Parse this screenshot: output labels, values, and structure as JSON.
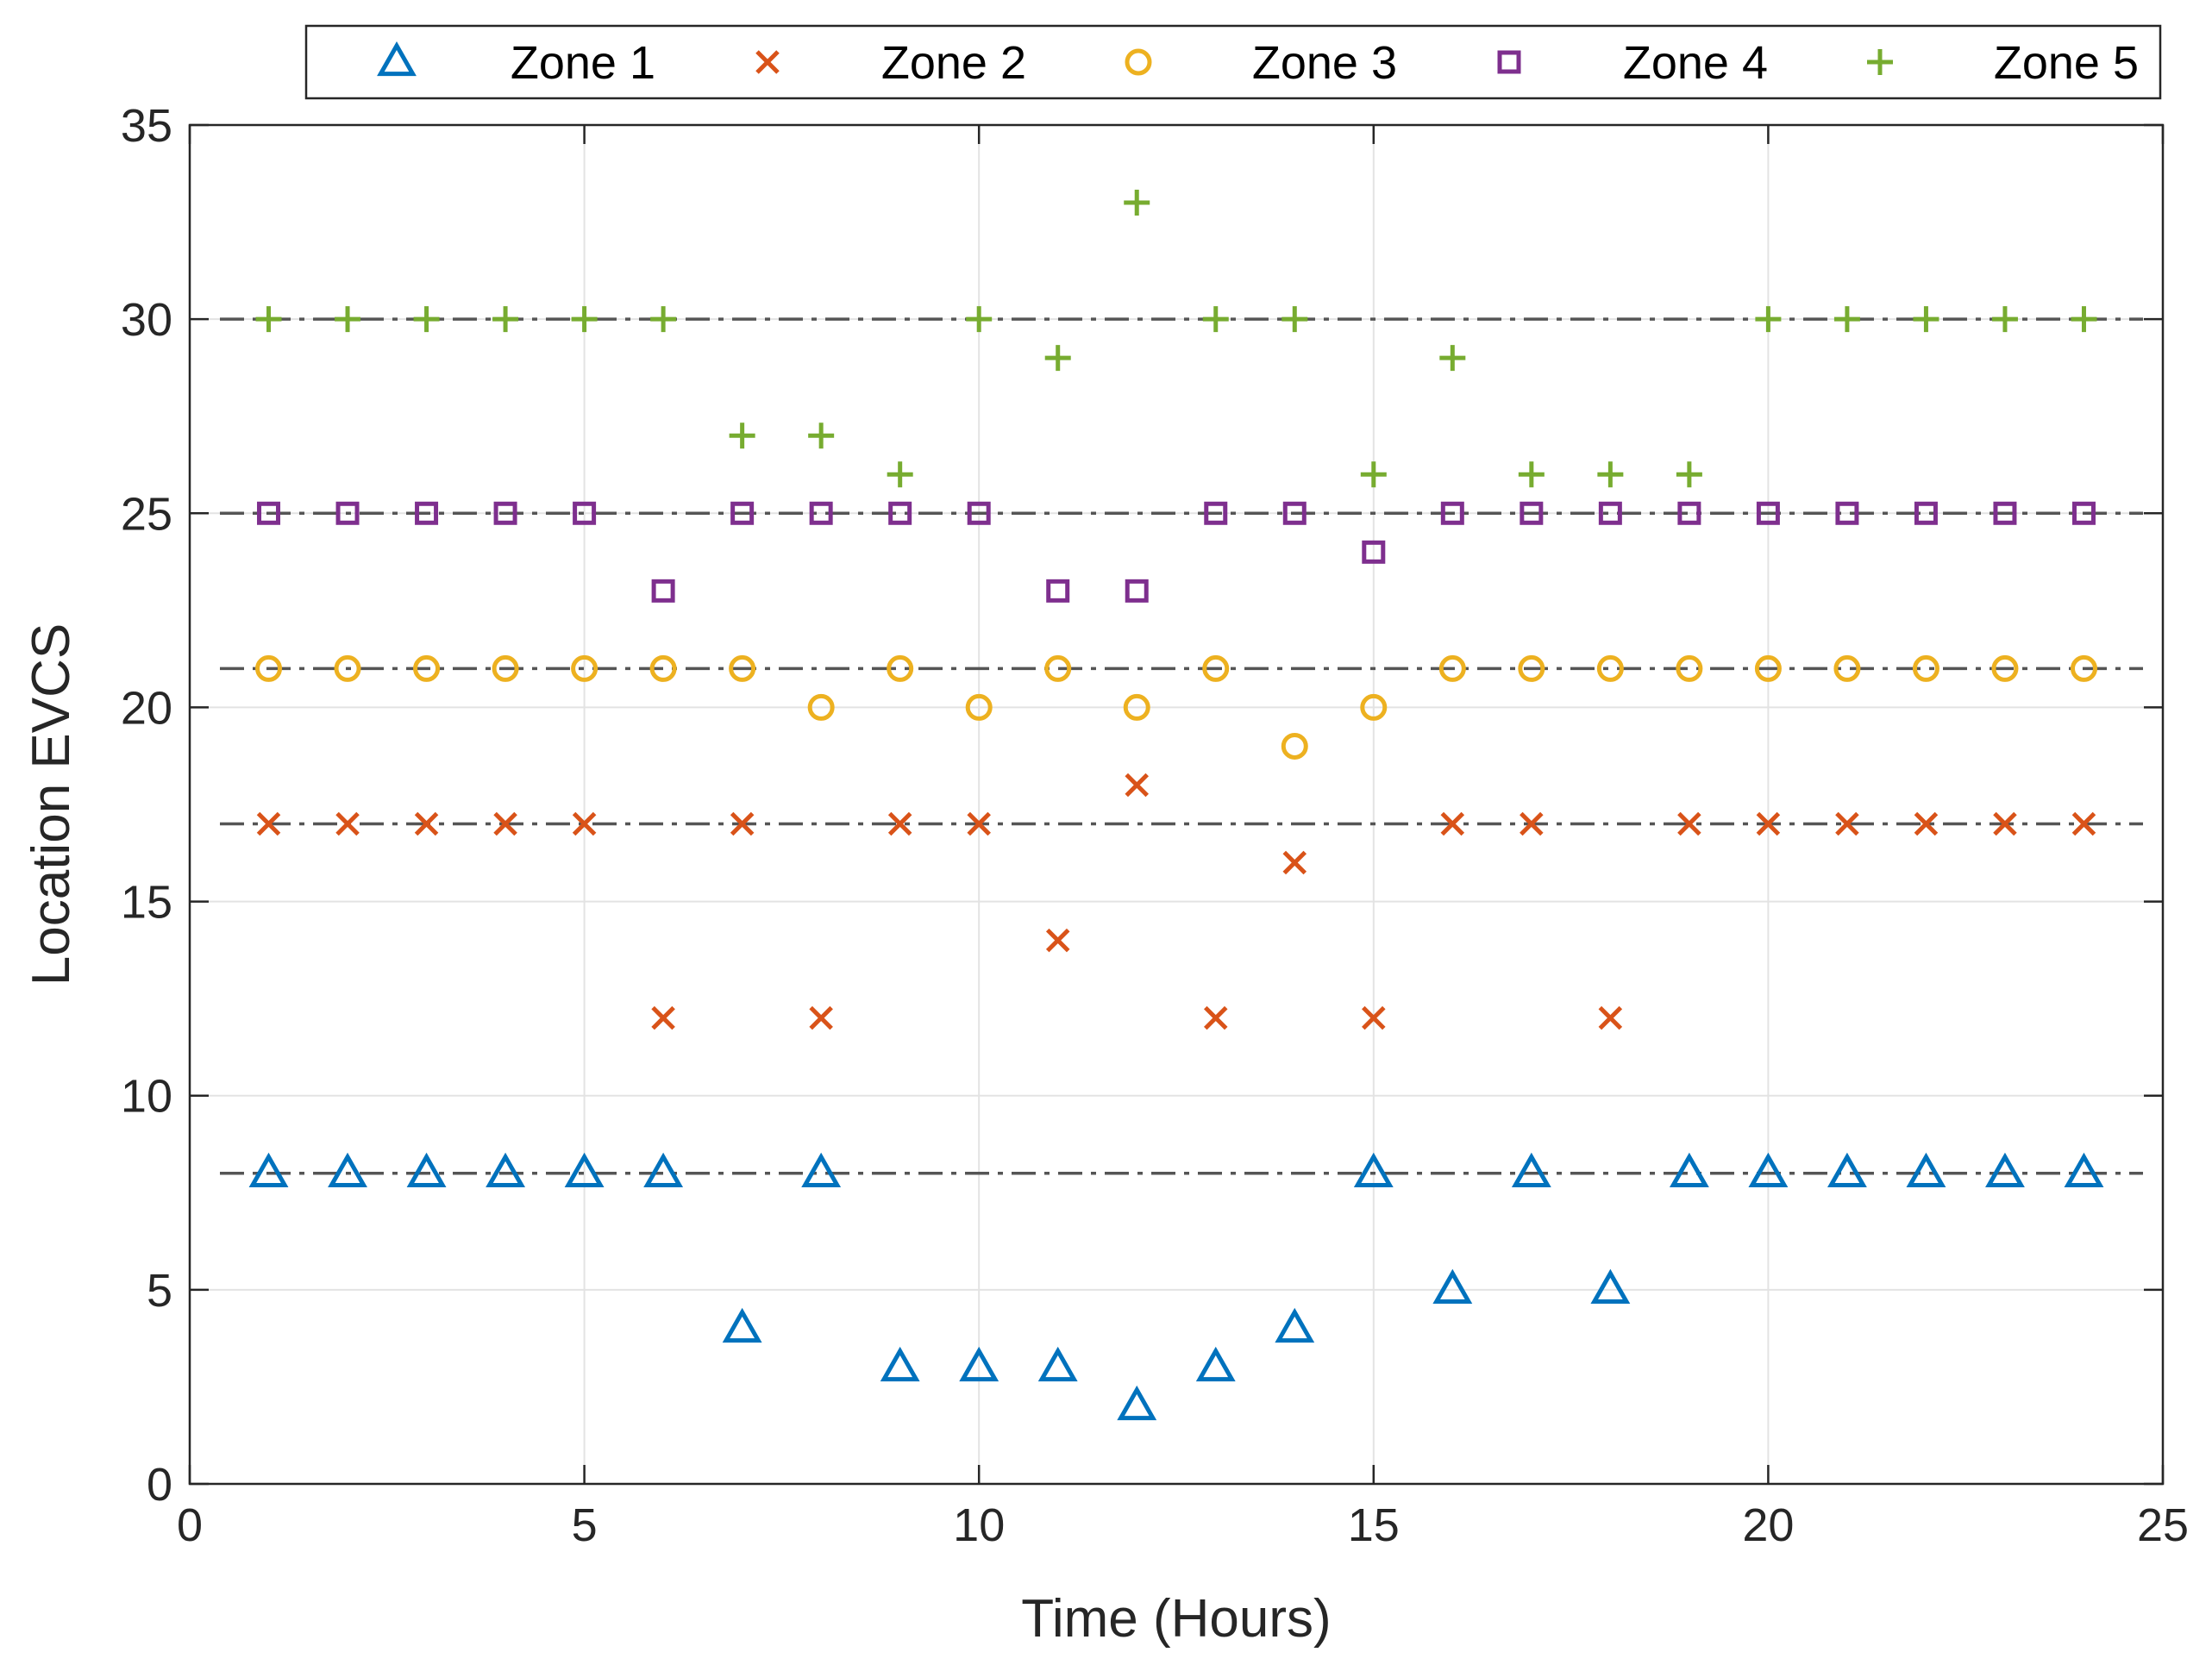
{
  "chart_data": {
    "type": "scatter",
    "title": "",
    "xlabel": "Time (Hours)",
    "ylabel": "Location EVCS",
    "xlim": [
      0,
      25
    ],
    "ylim": [
      0,
      35
    ],
    "xticks": [
      0,
      5,
      10,
      15,
      20,
      25
    ],
    "yticks": [
      0,
      5,
      10,
      15,
      20,
      25,
      30,
      35
    ],
    "grid": true,
    "legend_position": "top (outside, horizontal)",
    "x": [
      1,
      2,
      3,
      4,
      5,
      6,
      7,
      8,
      9,
      10,
      11,
      12,
      13,
      14,
      15,
      16,
      17,
      18,
      19,
      20,
      21,
      22,
      23,
      24
    ],
    "series": [
      {
        "name": "Zone 1",
        "marker": "triangle",
        "color": "#0072BD",
        "values": [
          8,
          8,
          8,
          8,
          8,
          8,
          4,
          8,
          3,
          3,
          3,
          2,
          3,
          4,
          8,
          5,
          8,
          5,
          8,
          8,
          8,
          8,
          8,
          8
        ]
      },
      {
        "name": "Zone 2",
        "marker": "x",
        "color": "#D95319",
        "values": [
          17,
          17,
          17,
          17,
          17,
          12,
          17,
          12,
          17,
          17,
          14,
          18,
          12,
          16,
          12,
          17,
          17,
          12,
          17,
          17,
          17,
          17,
          17,
          17
        ]
      },
      {
        "name": "Zone 3",
        "marker": "circle",
        "color": "#EDB120",
        "values": [
          21,
          21,
          21,
          21,
          21,
          21,
          21,
          20,
          21,
          20,
          21,
          20,
          21,
          19,
          20,
          21,
          21,
          21,
          21,
          21,
          21,
          21,
          21,
          21
        ]
      },
      {
        "name": "Zone 4",
        "marker": "square",
        "color": "#7E2F8E",
        "values": [
          25,
          25,
          25,
          25,
          25,
          23,
          25,
          25,
          25,
          25,
          23,
          23,
          25,
          25,
          24,
          25,
          25,
          25,
          25,
          25,
          25,
          25,
          25,
          25
        ]
      },
      {
        "name": "Zone 5",
        "marker": "plus",
        "color": "#77AC30",
        "values": [
          30,
          30,
          30,
          30,
          30,
          30,
          27,
          27,
          26,
          30,
          29,
          33,
          30,
          30,
          26,
          29,
          26,
          26,
          26,
          30,
          30,
          30,
          30,
          30
        ]
      }
    ],
    "reference_lines": [
      {
        "y": 8,
        "style": "dash-dot",
        "color": "#555555"
      },
      {
        "y": 17,
        "style": "dash-dot",
        "color": "#555555"
      },
      {
        "y": 21,
        "style": "dash-dot",
        "color": "#555555"
      },
      {
        "y": 25,
        "style": "dash-dot",
        "color": "#555555"
      },
      {
        "y": 30,
        "style": "dash-dot",
        "color": "#555555"
      }
    ]
  }
}
